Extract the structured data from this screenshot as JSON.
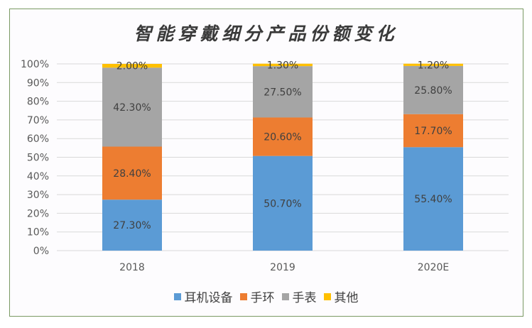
{
  "chart_data": {
    "type": "bar",
    "stacked": true,
    "title": "智能穿戴细分产品份额变化",
    "xlabel": "",
    "ylabel": "",
    "ylim": [
      0,
      100
    ],
    "yticks": [
      "0%",
      "10%",
      "20%",
      "30%",
      "40%",
      "50%",
      "60%",
      "70%",
      "80%",
      "90%",
      "100%"
    ],
    "grid": true,
    "legend_position": "bottom",
    "categories": [
      "2018",
      "2019",
      "2020E"
    ],
    "series": [
      {
        "name": "耳机设备",
        "color": "#5b9bd5",
        "values": [
          27.3,
          50.7,
          55.4
        ],
        "labels": [
          "27.30%",
          "50.70%",
          "55.40%"
        ]
      },
      {
        "name": "手环",
        "color": "#ed7d31",
        "values": [
          28.4,
          20.6,
          17.7
        ],
        "labels": [
          "28.40%",
          "20.60%",
          "17.70%"
        ]
      },
      {
        "name": "手表",
        "color": "#a5a5a5",
        "values": [
          42.3,
          27.5,
          25.8
        ],
        "labels": [
          "42.30%",
          "27.50%",
          "25.80%"
        ]
      },
      {
        "name": "其他",
        "color": "#ffc000",
        "values": [
          2.0,
          1.3,
          1.2
        ],
        "labels": [
          "2.00%",
          "1.30%",
          "1.20%"
        ]
      }
    ]
  }
}
